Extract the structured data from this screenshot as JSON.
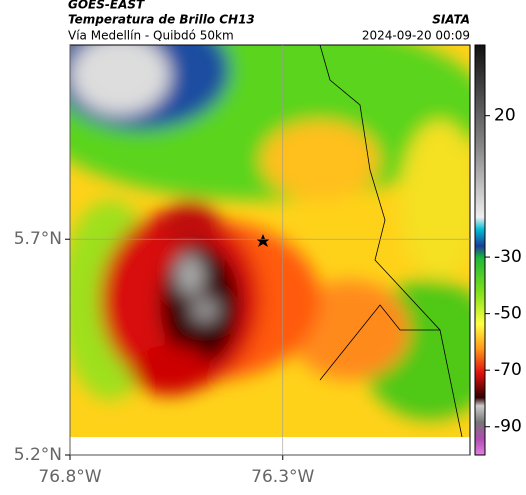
{
  "header": {
    "agency": "GOES-EAST",
    "title": "Temperatura de Brillo CH13",
    "subtitle": "Vía Medellín - Quibdó 50km",
    "source": "SIATA",
    "datetime": "2024-09-20 00:09"
  },
  "map": {
    "xlim": [
      -76.8,
      -75.86
    ],
    "ylim": [
      5.2,
      6.15
    ],
    "xticks": [
      {
        "value": -76.8,
        "label": "76.8°W"
      },
      {
        "value": -76.3,
        "label": "76.3°W"
      }
    ],
    "yticks": [
      {
        "value": 5.7,
        "label": "5.7°N"
      },
      {
        "value": 5.2,
        "label": "5.2°N"
      }
    ]
  },
  "colorbar": {
    "lim": [
      -100,
      45
    ],
    "ticks": [
      20,
      -30,
      -50,
      -70,
      -90
    ]
  }
}
